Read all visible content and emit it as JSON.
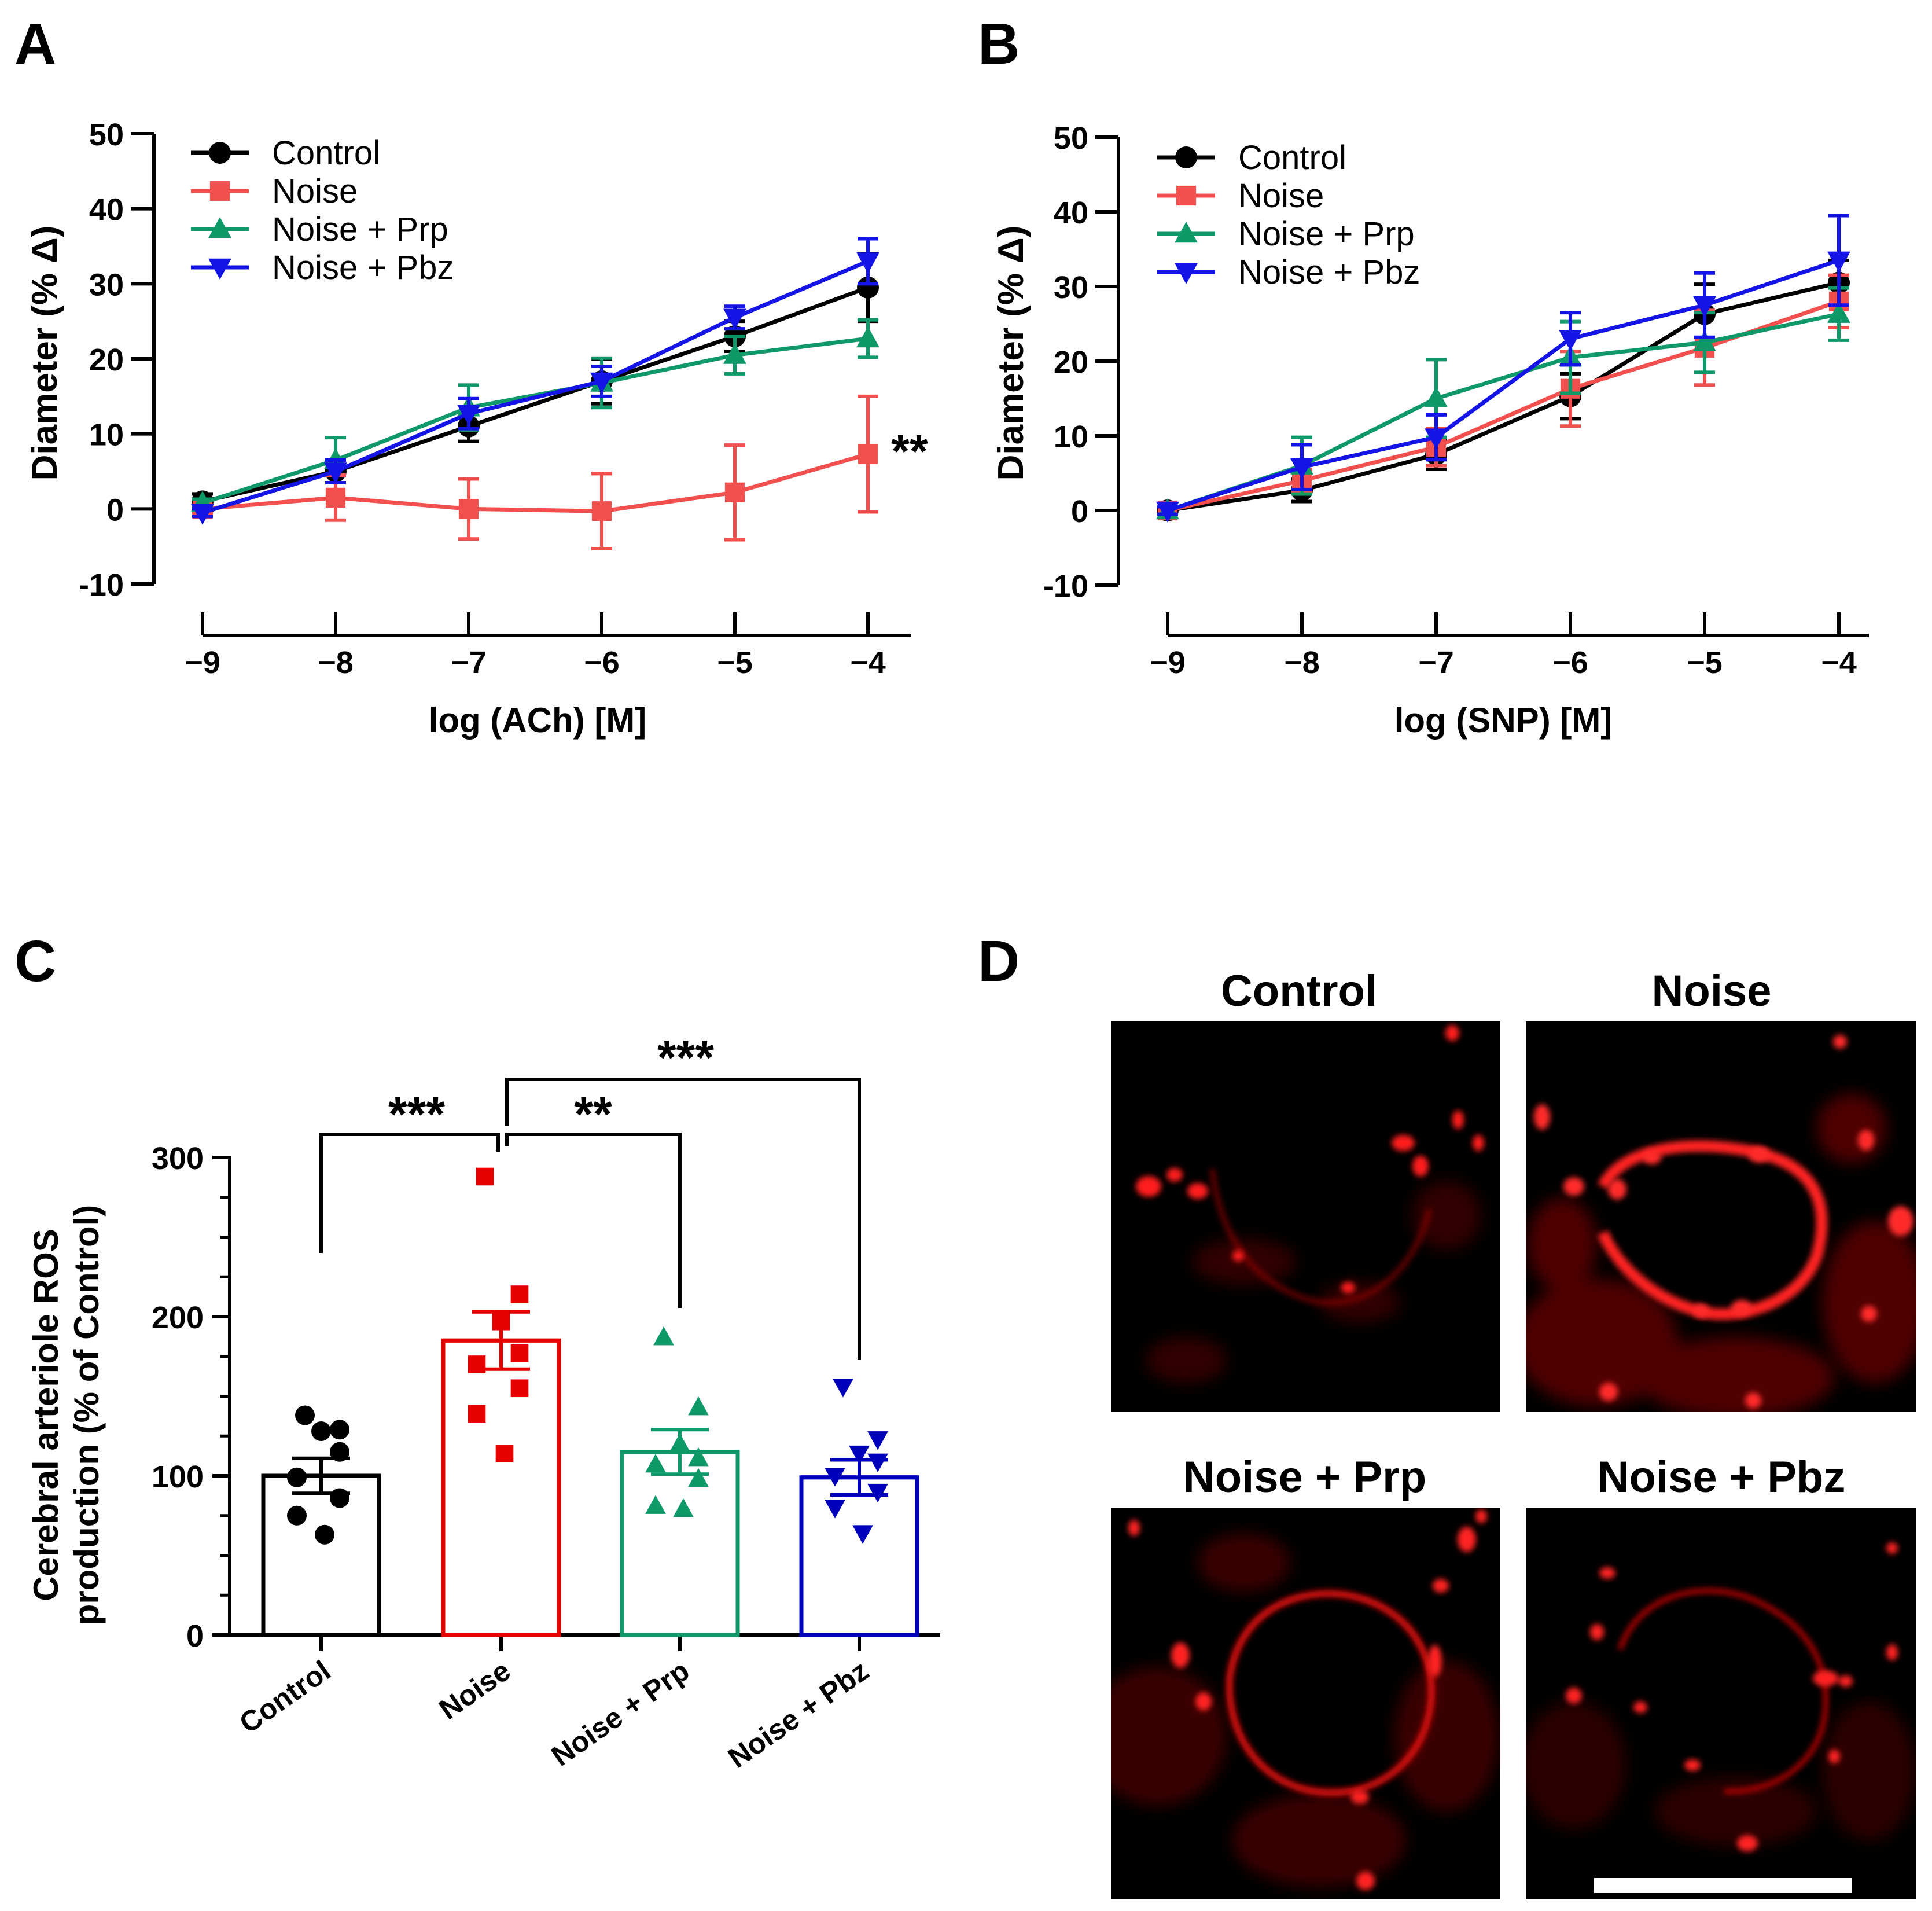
{
  "panels": {
    "A": {
      "letter": "A"
    },
    "B": {
      "letter": "B"
    },
    "C": {
      "letter": "C"
    },
    "D": {
      "letter": "D"
    }
  },
  "colors": {
    "control": "#000000",
    "noise": "#f24f4f",
    "noise_prp": "#0f9968",
    "noise_pbz": "#1414e6",
    "noise_bar": "#e60000",
    "noise_pbz_bar": "#0000bb"
  },
  "chart_data": [
    {
      "id": "A",
      "type": "line",
      "xlabel": "log (ACh) [M]",
      "ylabel": "Diameter (% Δ)",
      "x": [
        -9,
        -8,
        -7,
        -6,
        -5,
        -4
      ],
      "x_tick_labels": [
        "−9",
        "−8",
        "−7",
        "−6",
        "−5",
        "−4"
      ],
      "ylim": [
        -10,
        50
      ],
      "y_ticks": [
        50,
        40,
        30,
        20,
        10,
        0,
        -10
      ],
      "y_tick_labels": [
        "50",
        "40",
        "30",
        "20",
        "10",
        "0",
        "-10"
      ],
      "legend_position": "top-left",
      "series": [
        {
          "name": "Control",
          "marker": "circle",
          "color": "#000000",
          "values": [
            1,
            5,
            11,
            17,
            23,
            29.5
          ],
          "errors": [
            1,
            1.5,
            2,
            3,
            2,
            4.5
          ]
        },
        {
          "name": "Noise",
          "marker": "square",
          "color": "#f24f4f",
          "values": [
            0,
            1.5,
            0,
            -0.3,
            2.2,
            7.3
          ],
          "errors": [
            0.5,
            3,
            4,
            5,
            6.3,
            7.7
          ]
        },
        {
          "name": "Noise + Prp",
          "marker": "triangle-up",
          "color": "#0f9968",
          "values": [
            0.8,
            6.5,
            13.5,
            16.8,
            20.5,
            22.7
          ],
          "errors": [
            0.5,
            3,
            3,
            3.3,
            2.5,
            2.5
          ]
        },
        {
          "name": "Noise + Pbz",
          "marker": "triangle-down",
          "color": "#1414e6",
          "values": [
            -0.5,
            5,
            12.7,
            17,
            25.5,
            33
          ],
          "errors": [
            0.5,
            1.5,
            2,
            2,
            1.5,
            3
          ]
        }
      ],
      "annotation": "**"
    },
    {
      "id": "B",
      "type": "line",
      "xlabel": "log (SNP) [M]",
      "ylabel": "Diameter (% Δ)",
      "x": [
        -9,
        -8,
        -7,
        -6,
        -5,
        -4
      ],
      "x_tick_labels": [
        "−9",
        "−8",
        "−7",
        "−6",
        "−5",
        "−4"
      ],
      "ylim": [
        -10,
        50
      ],
      "y_ticks": [
        50,
        40,
        30,
        20,
        10,
        0,
        -10
      ],
      "y_tick_labels": [
        "50",
        "40",
        "30",
        "20",
        "10",
        "0",
        "-10"
      ],
      "legend_position": "top-left",
      "series": [
        {
          "name": "Control",
          "marker": "circle",
          "color": "#000000",
          "values": [
            0,
            2.7,
            7.5,
            15.3,
            26.3,
            30.5
          ],
          "errors": [
            0.5,
            1.5,
            2,
            3,
            4,
            3
          ]
        },
        {
          "name": "Noise",
          "marker": "square",
          "color": "#f24f4f",
          "values": [
            0,
            4,
            8.5,
            16.3,
            21.8,
            28
          ],
          "errors": [
            0.5,
            1.5,
            2.5,
            5,
            5,
            3.5
          ]
        },
        {
          "name": "Noise + Prp",
          "marker": "triangle-up",
          "color": "#0f9968",
          "values": [
            0,
            6,
            15,
            20.5,
            22.5,
            26.3
          ],
          "errors": [
            0.5,
            3.8,
            5.2,
            4.8,
            4,
            3.5
          ]
        },
        {
          "name": "Noise + Pbz",
          "marker": "triangle-down",
          "color": "#1414e6",
          "values": [
            0,
            5.8,
            9.8,
            23,
            27.5,
            33.5
          ],
          "errors": [
            0.5,
            3,
            3,
            3.5,
            4.3,
            6
          ]
        }
      ]
    },
    {
      "id": "C",
      "type": "bar",
      "ylabel_line1": "Cerebral arteriole ROS",
      "ylabel_line2": "production (% of Control)",
      "ylim": [
        0,
        300
      ],
      "y_ticks": [
        0,
        100,
        200,
        300
      ],
      "y_tick_labels": [
        "0",
        "100",
        "200",
        "300"
      ],
      "categories": [
        "Control",
        "Noise",
        "Noise + Prp",
        "Noise + Pbz"
      ],
      "values": [
        100,
        185,
        115,
        99
      ],
      "sem": [
        11,
        18,
        14,
        11
      ],
      "points": [
        {
          "marker": "circle",
          "values": [
            138,
            129,
            128,
            115,
            99,
            86,
            75,
            63
          ]
        },
        {
          "marker": "square",
          "values": [
            288,
            214,
            197,
            177,
            170,
            155,
            139,
            114
          ]
        },
        {
          "marker": "triangle-up",
          "values": [
            187,
            143,
            120,
            111,
            107,
            98,
            81,
            79
          ]
        },
        {
          "marker": "triangle-down",
          "values": [
            156,
            123,
            114,
            109,
            100,
            90,
            80,
            64
          ]
        }
      ],
      "significance": [
        {
          "from": "Control",
          "to": "Noise",
          "label": "***"
        },
        {
          "from": "Noise",
          "to": "Noise + Prp",
          "label": "**"
        },
        {
          "from": "Noise",
          "to": "Noise + Pbz",
          "label": "***"
        }
      ]
    }
  ],
  "images": {
    "titles": [
      "Control",
      "Noise",
      "Noise + Prp",
      "Noise + Pbz"
    ]
  }
}
